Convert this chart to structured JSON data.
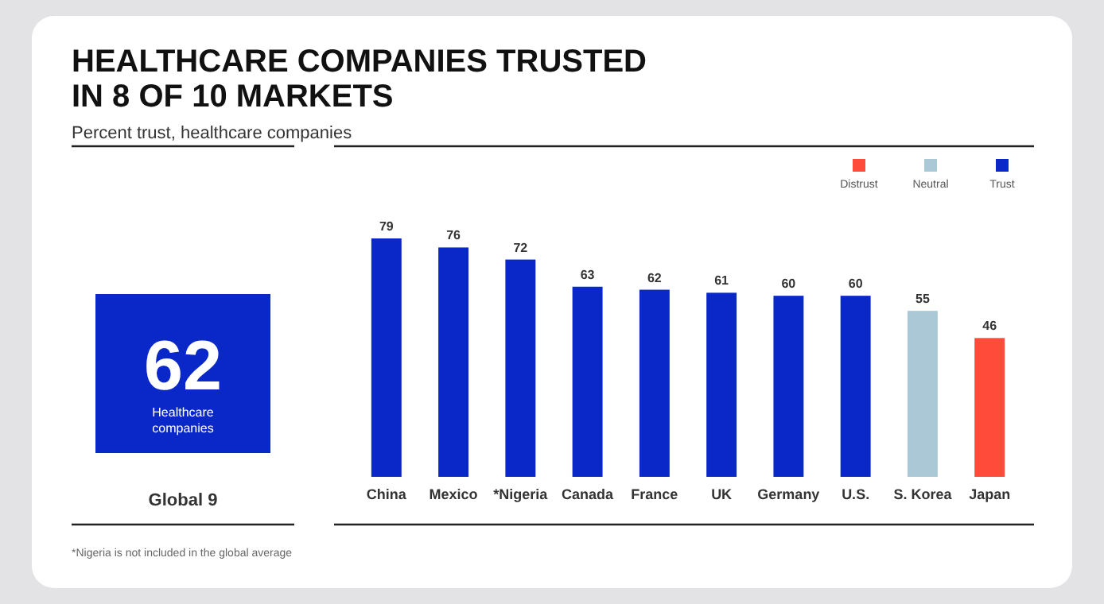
{
  "chart_data": {
    "type": "bar",
    "title": "HEALTHCARE COMPANIES TRUSTED IN 8 OF 10 MARKETS",
    "subtitle": "Percent trust, healthcare companies",
    "categories": [
      "China",
      "Mexico",
      "*Nigeria",
      "Canada",
      "France",
      "UK",
      "Germany",
      "U.S.",
      "S. Korea",
      "Japan"
    ],
    "series": [
      {
        "name": "Distrust",
        "color": "#ff4b3a",
        "values": [
          null,
          null,
          null,
          null,
          null,
          null,
          null,
          null,
          null,
          46
        ]
      },
      {
        "name": "Neutral",
        "color": "#aac8d6",
        "values": [
          null,
          null,
          null,
          null,
          null,
          null,
          null,
          null,
          55,
          null
        ]
      },
      {
        "name": "Trust",
        "color": "#0a28c8",
        "values": [
          79,
          76,
          72,
          63,
          62,
          61,
          60,
          60,
          null,
          null
        ]
      }
    ],
    "data_labels": true,
    "legend": "top right",
    "annotations": [
      "62",
      "Healthcare companies",
      "Global 9",
      "*Nigeria is not included in the global average"
    ]
  }
}
